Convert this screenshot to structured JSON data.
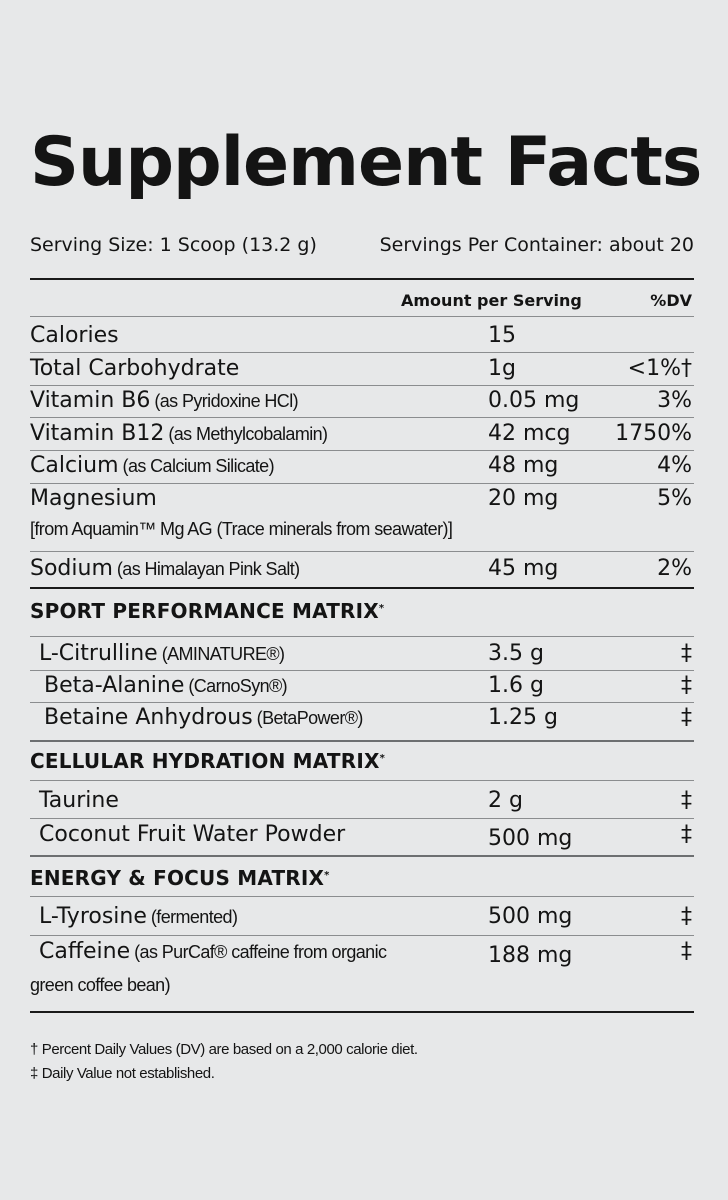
{
  "title": "Supplement Facts",
  "serving_size": "Serving Size: 1 Scoop (13.2 g)",
  "servings_per_container": "Servings Per Container: about 20",
  "columns": {
    "amount": "Amount per Serving",
    "dv": "%DV"
  },
  "nutrients": [
    {
      "name": "Calories",
      "sub": "",
      "note": "",
      "amount": "15",
      "dv": ""
    },
    {
      "name": "Total Carbohydrate",
      "sub": "",
      "note": "",
      "amount": "1g",
      "dv": "<1%†"
    },
    {
      "name": "Vitamin B6",
      "sub": "(as Pyridoxine HCl)",
      "note": "",
      "amount": "0.05 mg",
      "dv": "3%"
    },
    {
      "name": "Vitamin B12",
      "sub": "(as Methylcobalamin)",
      "note": "",
      "amount": "42 mcg",
      "dv": "1750%"
    },
    {
      "name": "Calcium",
      "sub": "(as Calcium Silicate)",
      "note": "",
      "amount": "48 mg",
      "dv": "4%"
    },
    {
      "name": "Magnesium",
      "sub": "",
      "note": "[from Aquamin™ Mg AG (Trace minerals from seawater)]",
      "amount": "20 mg",
      "dv": "5%"
    },
    {
      "name": "Sodium",
      "sub": "(as Himalayan Pink Salt)",
      "note": "",
      "amount": "45 mg",
      "dv": "2%"
    }
  ],
  "matrices": [
    {
      "title": "SPORT PERFORMANCE MATRIX",
      "mark": "*",
      "items": [
        {
          "name": "L-Citrulline",
          "sub": "(AMINATURE®)",
          "note": "",
          "amount": "3.5 g",
          "dv": "‡"
        },
        {
          "name": "Beta-Alanine",
          "sub": "(CarnoSyn®)",
          "note": "",
          "amount": "1.6 g",
          "dv": "‡"
        },
        {
          "name": "Betaine Anhydrous",
          "sub": "(BetaPower®)",
          "note": "",
          "amount": "1.25 g",
          "dv": "‡"
        }
      ]
    },
    {
      "title": "CELLULAR HYDRATION MATRIX",
      "mark": "*",
      "items": [
        {
          "name": "Taurine",
          "sub": "",
          "note": "",
          "amount": "2 g",
          "dv": "‡"
        },
        {
          "name": "Coconut Fruit Water Powder",
          "sub": "",
          "note": "",
          "amount": "500 mg",
          "dv": "‡"
        }
      ]
    },
    {
      "title": "ENERGY & FOCUS MATRIX",
      "mark": "*",
      "items": [
        {
          "name": "L-Tyrosine",
          "sub": "(fermented)",
          "note": "",
          "amount": "500 mg",
          "dv": "‡"
        },
        {
          "name": "Caffeine",
          "sub": "(as PurCaf® caffeine from organic",
          "note": "green coffee bean)",
          "amount": "188 mg",
          "dv": "‡"
        }
      ]
    }
  ],
  "footnotes": [
    "† Percent Daily Values (DV) are based on a 2,000 calorie diet.",
    "‡ Daily Value not established."
  ]
}
